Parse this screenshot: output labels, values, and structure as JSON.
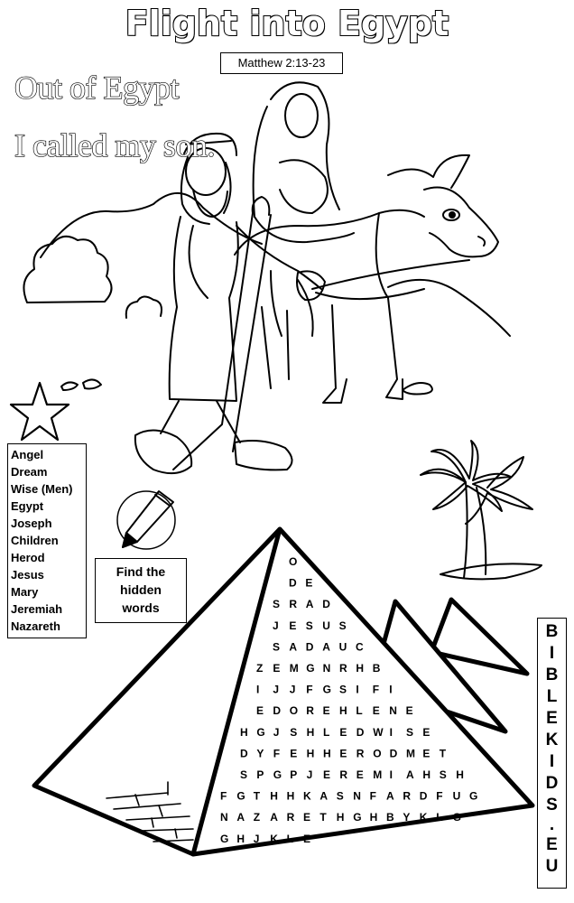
{
  "header": {
    "title": "Flight into Egypt",
    "reference": "Matthew 2:13-23"
  },
  "verse": {
    "line1": "Out of Egypt",
    "line2": "I called my son."
  },
  "word_list": [
    "Angel",
    "Dream",
    "Wise (Men)",
    "Egypt",
    "Joseph",
    "Children",
    "Herod",
    "Jesus",
    "Mary",
    "Jeremiah",
    "Nazareth"
  ],
  "find_box": {
    "line1": "Find the",
    "line2": "hidden",
    "line3": "words"
  },
  "site": [
    "B",
    "I",
    "B",
    "L",
    "E",
    "K",
    "I",
    "D",
    "S",
    ".",
    "E",
    "U"
  ],
  "puzzle_rows": [
    "O",
    "D E",
    "S R A D",
    "J E S U S",
    "S A D A U C",
    "Z E M G N R H B",
    "I J J F G S I F I",
    "E D O R E H L E N E",
    "H G J S H L E D W I S E",
    "D Y F E H H E R O D M E T",
    "S P G P J E R E M I A H S H",
    "F G T H H K A S N F A R D F U G",
    "N A Z A R E T H G H B Y K L G",
    "G H J K L E"
  ],
  "icons": [
    "star-outline-icon",
    "pencil-icon",
    "palm-trees-icon",
    "pyramid-icon"
  ]
}
